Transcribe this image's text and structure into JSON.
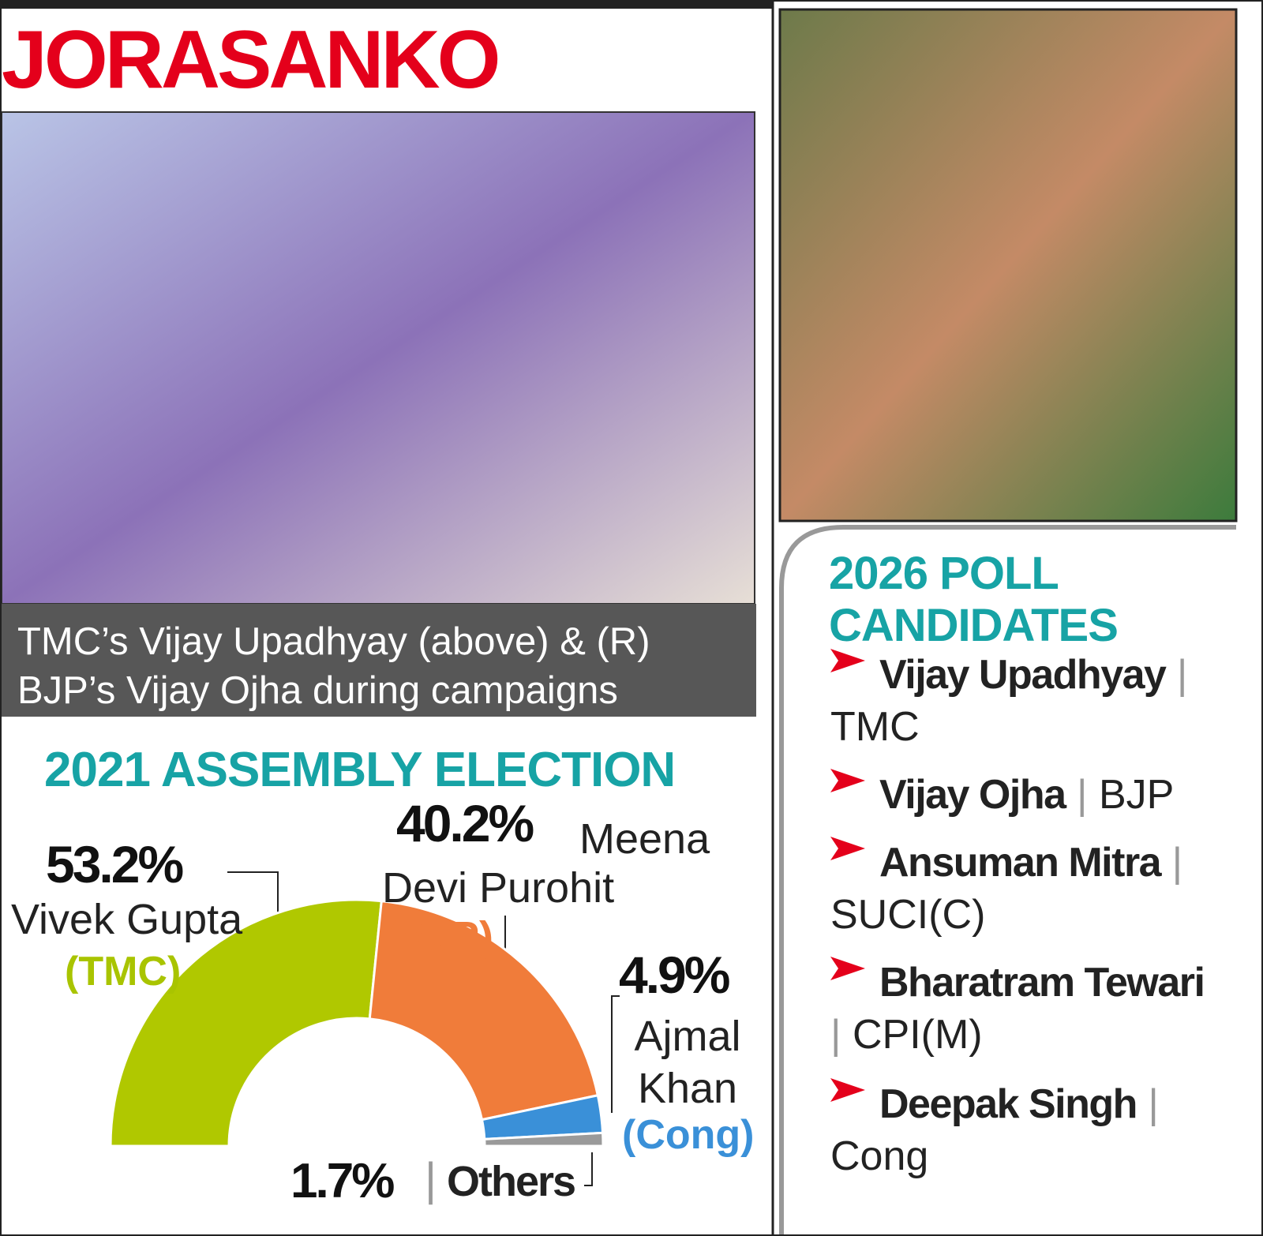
{
  "title": "JORASANKO",
  "photo_caption": "TMC’s Vijay Upadhyay (above) & (R) BJP’s Vijay Ojha during campaigns",
  "chart_data": {
    "type": "semidonut",
    "title": "2021 ASSEMBLY ELECTION",
    "categories": [
      "Vivek Gupta",
      "Meena Devi Purohit",
      "Ajmal Khan",
      "Others"
    ],
    "parties": [
      "(TMC)",
      "(BJP)",
      "(Cong)",
      null
    ],
    "values": [
      53.2,
      40.2,
      4.9,
      1.7
    ],
    "value_labels": [
      "53.2%",
      "40.2%",
      "4.9%",
      "1.7%"
    ],
    "colors": [
      "#b0c800",
      "#f07c3a",
      "#3a90d8",
      "#9a9a9a"
    ]
  },
  "candidates": {
    "title": "2026 POLL CANDIDATES",
    "items": [
      {
        "name": "Vijay Upadhyay",
        "party": "TMC"
      },
      {
        "name": "Vijay Ojha",
        "party": "BJP"
      },
      {
        "name": "Ansuman Mitra",
        "party": "SUCI(C)"
      },
      {
        "name": "Bharatram Tewari",
        "party": "CPI(M)"
      },
      {
        "name": "Deepak Singh",
        "party": "Cong"
      }
    ]
  }
}
